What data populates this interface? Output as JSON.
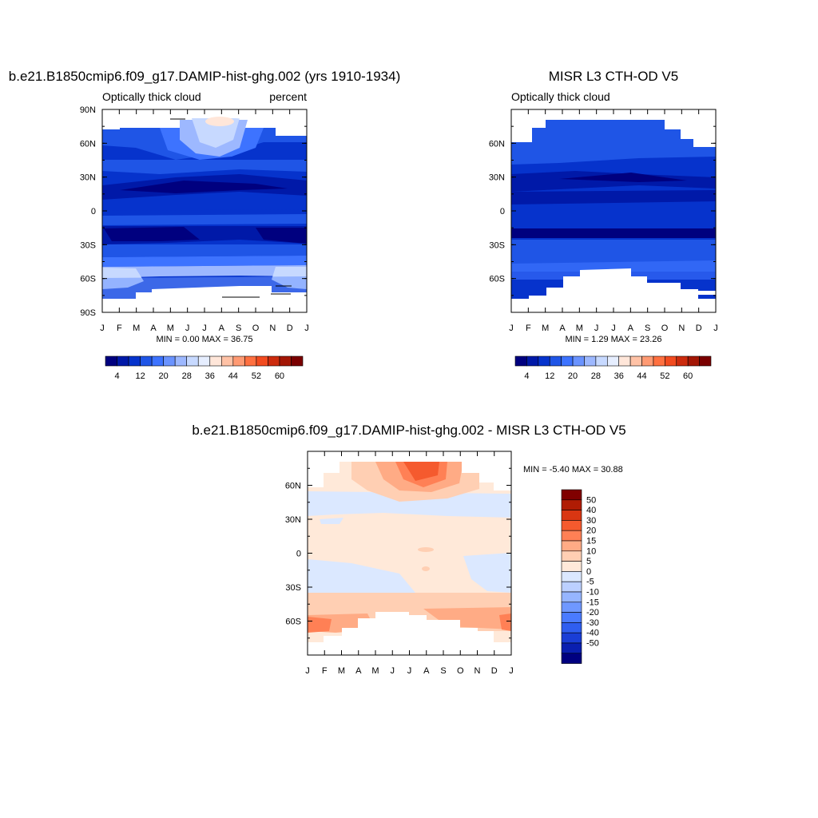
{
  "colors": {
    "abs_scale": [
      "#00007f",
      "#0019a8",
      "#0633cc",
      "#1f55e6",
      "#3d73ff",
      "#6a93ff",
      "#9db8ff",
      "#c7d9ff",
      "#e6eeff",
      "#ffe6d9",
      "#ffc2a6",
      "#ff9a73",
      "#ff7040",
      "#f24b1f",
      "#cc2b0d",
      "#a31605",
      "#7a0000"
    ],
    "diff_scale": [
      "#000080",
      "#0a1fb0",
      "#1a3ed6",
      "#2f5ef0",
      "#4a7bff",
      "#6f98ff",
      "#96b5ff",
      "#bcd0ff",
      "#dbe8ff",
      "#ffe9d9",
      "#ffcfb3",
      "#ffab85",
      "#ff8055",
      "#f55a2e",
      "#d93612",
      "#b01c04",
      "#800000"
    ]
  },
  "chart_data": [
    {
      "type": "heatmap",
      "title": "b.e21.B1850cmip6.f09_g17.DAMIP-hist-ghg.002 (yrs 1910-1934)",
      "subtitle_left": "Optically thick cloud",
      "subtitle_right": "percent",
      "x_ticks": [
        "J",
        "F",
        "M",
        "A",
        "M",
        "J",
        "J",
        "A",
        "S",
        "O",
        "N",
        "D",
        "J"
      ],
      "y_ticks": [
        "90N",
        "60N",
        "30N",
        "0",
        "30S",
        "60S",
        "90S"
      ],
      "min_max": "MIN =   0.00 MAX =  36.75",
      "colorbar_labels": [
        "4",
        "12",
        "20",
        "28",
        "36",
        "44",
        "52",
        "60"
      ],
      "ylim": [
        -90,
        90
      ]
    },
    {
      "type": "heatmap",
      "title": "MISR L3 CTH-OD V5",
      "subtitle_left": "Optically thick cloud",
      "x_ticks": [
        "J",
        "F",
        "M",
        "A",
        "M",
        "J",
        "J",
        "A",
        "S",
        "O",
        "N",
        "D",
        "J"
      ],
      "y_ticks": [
        "60N",
        "30N",
        "0",
        "30S",
        "60S"
      ],
      "min_max": "MIN =   1.29 MAX =  23.26",
      "colorbar_labels": [
        "4",
        "12",
        "20",
        "28",
        "36",
        "44",
        "52",
        "60"
      ],
      "ylim": [
        -90,
        90
      ]
    },
    {
      "type": "heatmap",
      "title": "b.e21.B1850cmip6.f09_g17.DAMIP-hist-ghg.002 - MISR L3 CTH-OD V5",
      "x_ticks": [
        "J",
        "F",
        "M",
        "A",
        "M",
        "J",
        "J",
        "A",
        "S",
        "O",
        "N",
        "D",
        "J"
      ],
      "y_ticks": [
        "60N",
        "30N",
        "0",
        "30S",
        "60S"
      ],
      "min_max": "MIN =  -5.40 MAX =  30.88",
      "colorbar_labels": [
        "50",
        "40",
        "30",
        "20",
        "15",
        "10",
        "5",
        "0",
        "-5",
        "-10",
        "-15",
        "-20",
        "-30",
        "-40",
        "-50"
      ],
      "ylim": [
        -90,
        90
      ]
    }
  ]
}
